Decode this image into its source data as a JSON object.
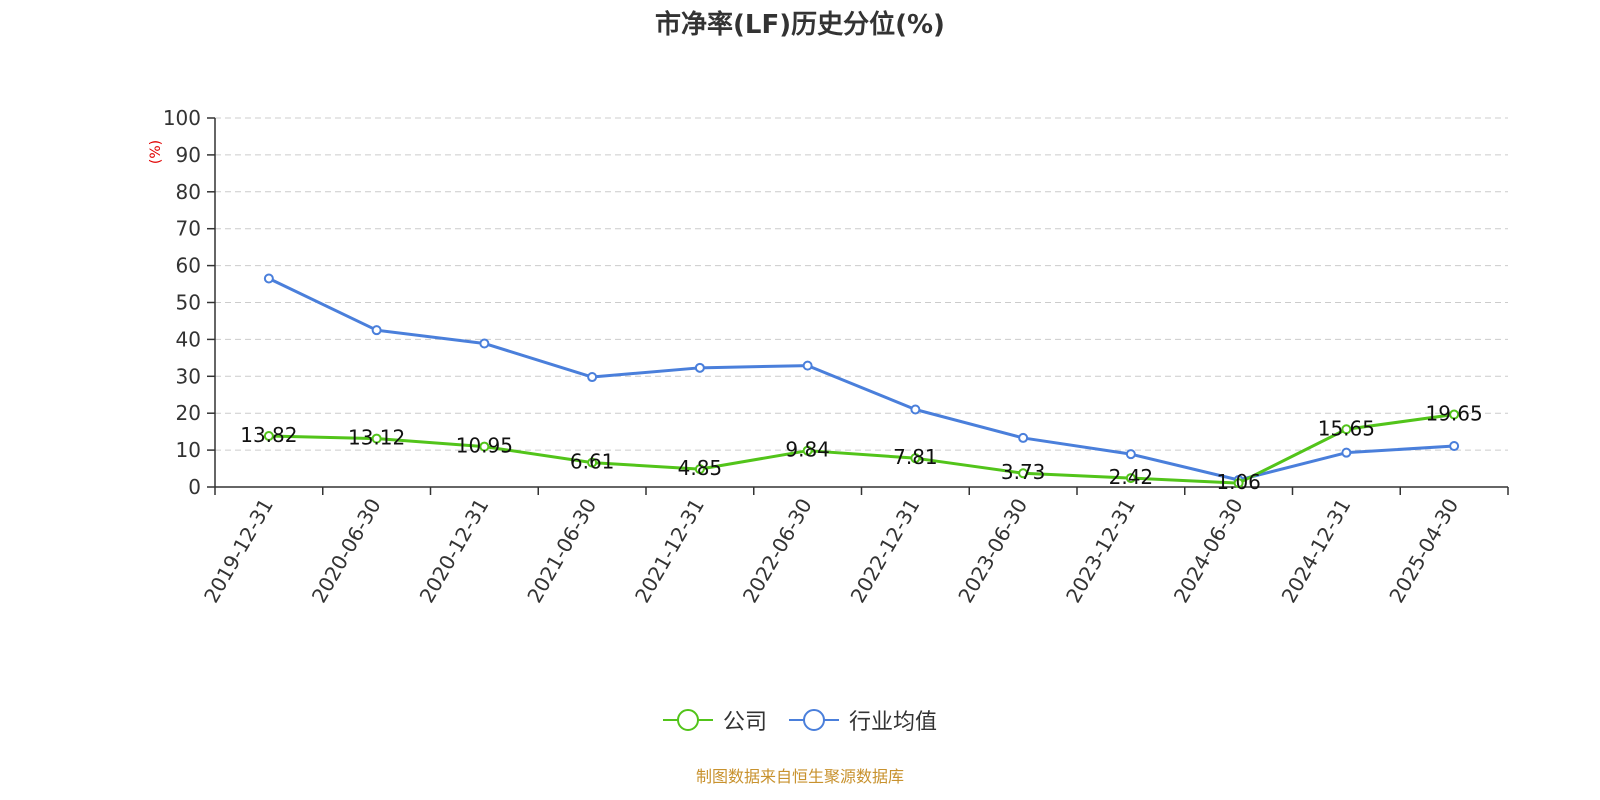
{
  "title": "市净率(LF)历史分位(%)",
  "source": "制图数据来自恒生聚源数据库",
  "colors": {
    "company": "#52c41a",
    "industry": "#4a7fdb",
    "grid": "#cccccc",
    "axis": "#333333",
    "unit": "#e00000"
  },
  "chart_data": {
    "type": "line",
    "title": "市净率(LF)历史分位(%)",
    "ylabel": "(%)",
    "xlabel": "",
    "ylim": [
      0,
      100
    ],
    "yticks": [
      0,
      10,
      20,
      30,
      40,
      50,
      60,
      70,
      80,
      90,
      100
    ],
    "grid": true,
    "legend_position": "bottom",
    "categories": [
      "2019-12-31",
      "2020-06-30",
      "2020-12-31",
      "2021-06-30",
      "2021-12-31",
      "2022-06-30",
      "2022-12-31",
      "2023-06-30",
      "2023-12-31",
      "2024-06-30",
      "2024-12-31",
      "2025-04-30"
    ],
    "series": [
      {
        "name": "公司",
        "color": "#52c41a",
        "values": [
          13.82,
          13.12,
          10.95,
          6.61,
          4.85,
          9.84,
          7.81,
          3.73,
          2.42,
          1.06,
          15.65,
          19.65
        ],
        "data_labels": [
          "13.82",
          "13.12",
          "10.95",
          "6.61",
          "4.85",
          "9.84",
          "7.81",
          "3.73",
          "2.42",
          "1.06",
          "15.65",
          "19.65"
        ]
      },
      {
        "name": "行业均值",
        "color": "#4a7fdb",
        "values": [
          56.5,
          42.5,
          38.9,
          29.8,
          32.3,
          32.9,
          21.0,
          13.3,
          8.9,
          1.9,
          9.3,
          11.1
        ]
      }
    ]
  }
}
